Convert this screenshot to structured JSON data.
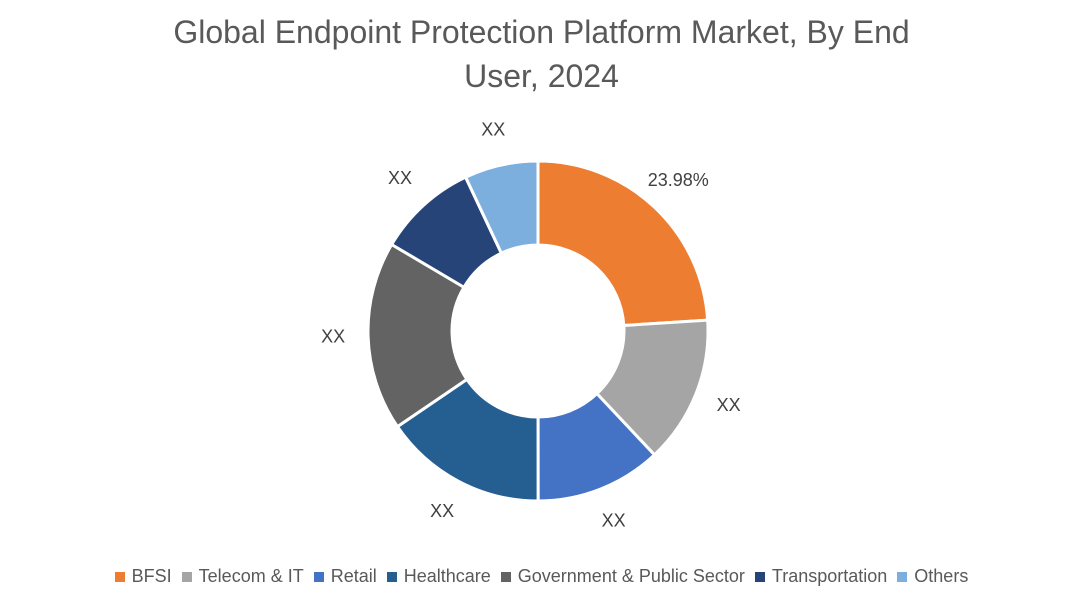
{
  "chart_data": {
    "type": "pie",
    "title_lines": [
      "Global Endpoint Protection Platform Market, By End",
      "User, 2024"
    ],
    "donut": true,
    "categories": [
      "BFSI",
      "Telecom & IT",
      "Retail",
      "Healthcare",
      "Government & Public Sector",
      "Transportation",
      "Others"
    ],
    "values": [
      23.98,
      14.0,
      12.0,
      15.5,
      18.0,
      9.5,
      7.0
    ],
    "data_labels": [
      "23.98%",
      "XX",
      "XX",
      "XX",
      "XX",
      "XX",
      "XX"
    ],
    "colors": [
      "#ED7D31",
      "#A5A5A5",
      "#4472C4",
      "#255E91",
      "#636363",
      "#264478",
      "#7CAFDD"
    ],
    "legend_position": "bottom"
  }
}
